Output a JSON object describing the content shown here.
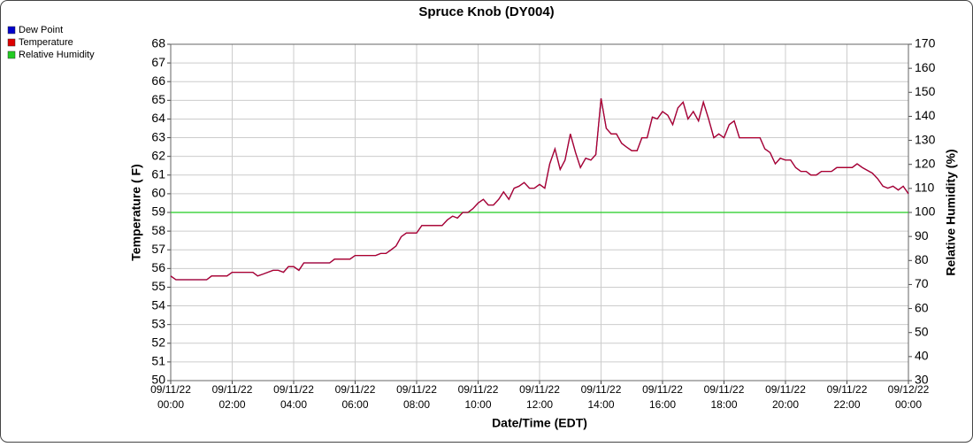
{
  "chart_data": {
    "type": "line",
    "title": "Spruce Knob (DY004)",
    "x_label": "Date/Time (EDT)",
    "y_label": "Temperature ( F)",
    "y2_label": "Relative Humidity (%)",
    "xlim": [
      0,
      24
    ],
    "xticks": [
      {
        "value": 0,
        "label": "09/11/22 00:00"
      },
      {
        "value": 2,
        "label": "09/11/22 02:00"
      },
      {
        "value": 4,
        "label": "09/11/22 04:00"
      },
      {
        "value": 6,
        "label": "09/11/22 06:00"
      },
      {
        "value": 8,
        "label": "09/11/22 08:00"
      },
      {
        "value": 10,
        "label": "09/11/22 10:00"
      },
      {
        "value": 12,
        "label": "09/11/22 12:00"
      },
      {
        "value": 14,
        "label": "09/11/22 14:00"
      },
      {
        "value": 16,
        "label": "09/11/22 16:00"
      },
      {
        "value": 18,
        "label": "09/11/22 18:00"
      },
      {
        "value": 20,
        "label": "09/11/22 20:00"
      },
      {
        "value": 22,
        "label": "09/11/22 22:00"
      },
      {
        "value": 24,
        "label": "09/12/22 00:00"
      }
    ],
    "ylim": [
      50,
      68
    ],
    "yticks": [
      50,
      51,
      52,
      53,
      54,
      55,
      56,
      57,
      58,
      59,
      60,
      61,
      62,
      63,
      64,
      65,
      66,
      67,
      68
    ],
    "y2lim": [
      30,
      170
    ],
    "y2ticks": [
      30,
      40,
      50,
      60,
      70,
      80,
      90,
      100,
      110,
      120,
      130,
      140,
      150,
      160,
      170
    ],
    "grid": true,
    "legend": "top-left",
    "x": [
      0,
      0.17,
      0.5,
      1,
      1.17,
      1.33,
      1.83,
      2,
      2.67,
      2.83,
      3,
      3.33,
      3.5,
      3.67,
      3.83,
      4,
      4.17,
      4.33,
      4.67,
      5,
      5.17,
      5.33,
      5.83,
      6,
      6.5,
      6.67,
      6.83,
      7,
      7.17,
      7.33,
      7.5,
      7.67,
      7.83,
      8,
      8.17,
      8.5,
      8.83,
      9,
      9.17,
      9.33,
      9.5,
      9.67,
      9.83,
      10,
      10.17,
      10.33,
      10.5,
      10.67,
      10.83,
      11,
      11.17,
      11.33,
      11.5,
      11.67,
      11.83,
      12,
      12.17,
      12.33,
      12.5,
      12.67,
      12.83,
      13,
      13.17,
      13.33,
      13.5,
      13.67,
      13.83,
      14,
      14.17,
      14.33,
      14.5,
      14.67,
      14.83,
      15,
      15.17,
      15.33,
      15.5,
      15.67,
      15.83,
      16,
      16.17,
      16.33,
      16.5,
      16.67,
      16.83,
      17,
      17.17,
      17.33,
      17.5,
      17.67,
      17.83,
      18,
      18.17,
      18.33,
      18.5,
      19,
      19.17,
      19.33,
      19.5,
      19.67,
      19.83,
      20,
      20.17,
      20.33,
      20.5,
      20.67,
      20.83,
      21,
      21.17,
      21.5,
      21.67,
      22,
      22.17,
      22.33,
      22.5,
      22.83,
      23,
      23.17,
      23.33,
      23.5,
      23.67,
      23.83,
      24
    ],
    "series": [
      {
        "name": "Dew Point",
        "color": "#0000cc",
        "values": [
          55.6,
          55.4,
          55.4,
          55.4,
          55.4,
          55.6,
          55.6,
          55.8,
          55.8,
          55.6,
          55.7,
          55.9,
          55.9,
          55.8,
          56.1,
          56.1,
          55.9,
          56.3,
          56.3,
          56.3,
          56.3,
          56.5,
          56.5,
          56.7,
          56.7,
          56.7,
          56.8,
          56.8,
          57.0,
          57.2,
          57.7,
          57.9,
          57.9,
          57.9,
          58.3,
          58.3,
          58.3,
          58.6,
          58.8,
          58.7,
          59.0,
          59.0,
          59.2,
          59.5,
          59.7,
          59.4,
          59.4,
          59.7,
          60.1,
          59.7,
          60.3,
          60.4,
          60.6,
          60.3,
          60.3,
          60.5,
          60.3,
          61.6,
          62.4,
          61.3,
          61.8,
          63.2,
          62.2,
          61.4,
          61.9,
          61.8,
          62.1,
          65.1,
          63.5,
          63.2,
          63.2,
          62.7,
          62.5,
          62.3,
          62.3,
          63.0,
          63.0,
          64.1,
          64.0,
          64.4,
          64.2,
          63.7,
          64.6,
          64.9,
          64.0,
          64.4,
          63.9,
          64.9,
          64.0,
          63.0,
          63.2,
          63.0,
          63.7,
          63.9,
          63.0,
          63.0,
          63.0,
          62.4,
          62.2,
          61.6,
          61.9,
          61.8,
          61.8,
          61.4,
          61.2,
          61.2,
          61.0,
          61.0,
          61.2,
          61.2,
          61.4,
          61.4,
          61.4,
          61.6,
          61.4,
          61.1,
          60.8,
          60.4,
          60.3,
          60.4,
          60.2,
          60.4,
          60.0
        ]
      },
      {
        "name": "Temperature",
        "color": "#dd0000",
        "values": [
          55.6,
          55.4,
          55.4,
          55.4,
          55.4,
          55.6,
          55.6,
          55.8,
          55.8,
          55.6,
          55.7,
          55.9,
          55.9,
          55.8,
          56.1,
          56.1,
          55.9,
          56.3,
          56.3,
          56.3,
          56.3,
          56.5,
          56.5,
          56.7,
          56.7,
          56.7,
          56.8,
          56.8,
          57.0,
          57.2,
          57.7,
          57.9,
          57.9,
          57.9,
          58.3,
          58.3,
          58.3,
          58.6,
          58.8,
          58.7,
          59.0,
          59.0,
          59.2,
          59.5,
          59.7,
          59.4,
          59.4,
          59.7,
          60.1,
          59.7,
          60.3,
          60.4,
          60.6,
          60.3,
          60.3,
          60.5,
          60.3,
          61.6,
          62.4,
          61.3,
          61.8,
          63.2,
          62.2,
          61.4,
          61.9,
          61.8,
          62.1,
          65.1,
          63.5,
          63.2,
          63.2,
          62.7,
          62.5,
          62.3,
          62.3,
          63.0,
          63.0,
          64.1,
          64.0,
          64.4,
          64.2,
          63.7,
          64.6,
          64.9,
          64.0,
          64.4,
          63.9,
          64.9,
          64.0,
          63.0,
          63.2,
          63.0,
          63.7,
          63.9,
          63.0,
          63.0,
          63.0,
          62.4,
          62.2,
          61.6,
          61.9,
          61.8,
          61.8,
          61.4,
          61.2,
          61.2,
          61.0,
          61.0,
          61.2,
          61.2,
          61.4,
          61.4,
          61.4,
          61.6,
          61.4,
          61.1,
          60.8,
          60.4,
          60.3,
          60.4,
          60.2,
          60.4,
          60.0
        ]
      },
      {
        "name": "Relative Humidity",
        "color": "#22cc22",
        "axis": "y2",
        "x": [
          0,
          24
        ],
        "values": [
          100,
          100
        ]
      }
    ]
  }
}
